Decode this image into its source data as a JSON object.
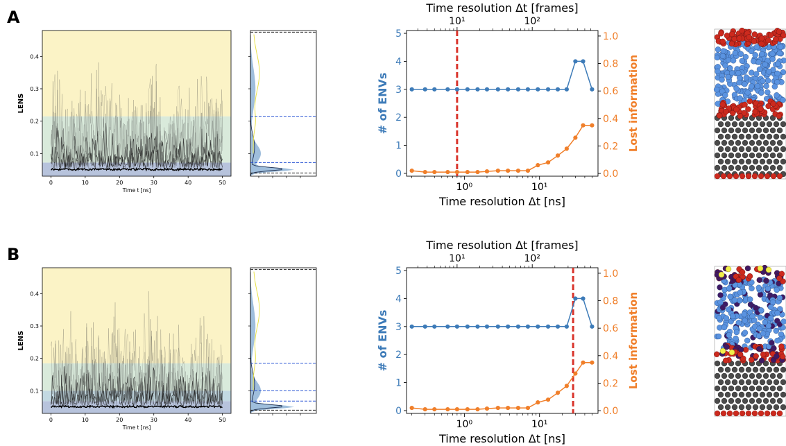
{
  "panels": [
    {
      "letter": "A",
      "lens_plot": {
        "ylabel": "LENS",
        "xlabel": "Time t [ns]",
        "x_ticks": [
          0,
          10,
          20,
          30,
          40,
          50
        ],
        "y_ticks": [
          "0.1",
          "0.2",
          "0.3",
          "0.4"
        ],
        "xlim": [
          -2.5,
          52.5
        ],
        "ylim": [
          0.03,
          0.48
        ],
        "bands": [
          {
            "from": 0.03,
            "to": 0.072,
            "color": "#b7c3dc"
          },
          {
            "from": 0.072,
            "to": 0.215,
            "color": "#d9eadb"
          },
          {
            "from": 0.215,
            "to": 0.48,
            "color": "#fbf3c6"
          }
        ],
        "signal": {
          "base": 0.055,
          "top": 0.37,
          "amplitude": 0.09
        }
      },
      "hist_thresholds": {
        "black": [
          0.04,
          0.475
        ],
        "blue": [
          0.072,
          0.215
        ]
      },
      "envs_plot": {
        "title_top": "Time resolution Δt [frames]",
        "xlabel": "Time resolution Δt [ns]",
        "ylabel_left": "# of ENVs",
        "ylabel_right": "Lost information",
        "top_ticks": [
          "10¹",
          "10²"
        ],
        "bottom_ticks": [
          "10⁰",
          "10¹"
        ],
        "left_ticks": [
          "0",
          "1",
          "2",
          "3",
          "4",
          "5"
        ],
        "right_ticks": [
          "0.0",
          "0.2",
          "0.4",
          "0.6",
          "0.8",
          "1.0"
        ],
        "vline_dt": 0.8
      },
      "structure": "A"
    },
    {
      "letter": "B",
      "lens_plot": {
        "ylabel": "LENS",
        "xlabel": "Time t [ns]",
        "x_ticks": [
          0,
          10,
          20,
          30,
          40,
          50
        ],
        "y_ticks": [
          "0.1",
          "0.2",
          "0.3",
          "0.4"
        ],
        "xlim": [
          -2.5,
          52.5
        ],
        "ylim": [
          0.03,
          0.48
        ],
        "bands": [
          {
            "from": 0.03,
            "to": 0.068,
            "color": "#b7c3dc"
          },
          {
            "from": 0.068,
            "to": 0.1,
            "color": "#c2d9e2"
          },
          {
            "from": 0.1,
            "to": 0.185,
            "color": "#d9eadb"
          },
          {
            "from": 0.185,
            "to": 0.48,
            "color": "#fbf3c6"
          }
        ],
        "signal": {
          "base": 0.055,
          "top": 0.36,
          "amplitude": 0.09
        }
      },
      "hist_thresholds": {
        "black": [
          0.04,
          0.475
        ],
        "blue": [
          0.068,
          0.1,
          0.185
        ]
      },
      "envs_plot": {
        "title_top": "Time resolution Δt [frames]",
        "xlabel": "Time resolution Δt [ns]",
        "ylabel_left": "# of ENVs",
        "ylabel_right": "Lost information",
        "top_ticks": [
          "10¹",
          "10²"
        ],
        "bottom_ticks": [
          "10⁰",
          "10¹"
        ],
        "left_ticks": [
          "0",
          "1",
          "2",
          "3",
          "4",
          "5"
        ],
        "right_ticks": [
          "0.0",
          "0.2",
          "0.4",
          "0.6",
          "0.8",
          "1.0"
        ],
        "vline_dt": 28
      },
      "structure": "B"
    }
  ],
  "chart_data": [
    {
      "type": "line",
      "series": [
        {
          "axis": "left",
          "color": "#3d7bb8",
          "x": [
            0.2,
            0.3,
            0.4,
            0.6,
            0.8,
            1.1,
            1.5,
            2.0,
            2.8,
            3.8,
            5.2,
            7.0,
            9.5,
            13,
            17.5,
            23,
            30,
            38,
            50
          ],
          "values": [
            3,
            3,
            3,
            3,
            3,
            3,
            3,
            3,
            3,
            3,
            3,
            3,
            3,
            3,
            3,
            3,
            4,
            4,
            3
          ]
        },
        {
          "axis": "right",
          "color": "#f07f2a",
          "x": [
            0.2,
            0.3,
            0.4,
            0.6,
            0.8,
            1.1,
            1.5,
            2.0,
            2.8,
            3.8,
            5.2,
            7.0,
            9.5,
            13,
            17.5,
            23,
            30,
            38,
            50
          ],
          "values": [
            0.02,
            0.01,
            0.01,
            0.01,
            0.01,
            0.01,
            0.01,
            0.015,
            0.02,
            0.02,
            0.02,
            0.02,
            0.06,
            0.08,
            0.13,
            0.18,
            0.26,
            0.35,
            0.35
          ]
        }
      ],
      "xlim": [
        0.17,
        60
      ],
      "ylim_left": [
        -0.1,
        5.1
      ],
      "ylim_right": [
        -0.02,
        1.04
      ]
    },
    {
      "type": "line",
      "series": [
        {
          "axis": "left",
          "color": "#3d7bb8",
          "x": [
            0.2,
            0.3,
            0.4,
            0.6,
            0.8,
            1.1,
            1.5,
            2.0,
            2.8,
            3.8,
            5.2,
            7.0,
            9.5,
            13,
            17.5,
            23,
            30,
            38,
            50
          ],
          "values": [
            3,
            3,
            3,
            3,
            3,
            3,
            3,
            3,
            3,
            3,
            3,
            3,
            3,
            3,
            3,
            3,
            4,
            4,
            3
          ]
        },
        {
          "axis": "right",
          "color": "#f07f2a",
          "x": [
            0.2,
            0.3,
            0.4,
            0.6,
            0.8,
            1.1,
            1.5,
            2.0,
            2.8,
            3.8,
            5.2,
            7.0,
            9.5,
            13,
            17.5,
            23,
            30,
            38,
            50
          ],
          "values": [
            0.02,
            0.01,
            0.01,
            0.01,
            0.01,
            0.01,
            0.01,
            0.015,
            0.02,
            0.02,
            0.02,
            0.02,
            0.06,
            0.08,
            0.13,
            0.18,
            0.27,
            0.35,
            0.35
          ]
        }
      ],
      "xlim": [
        0.17,
        60
      ],
      "ylim_left": [
        -0.1,
        5.1
      ],
      "ylim_right": [
        -0.02,
        1.04
      ]
    }
  ],
  "colors": {
    "blue": "#3d7bb8",
    "orange": "#f07f2a",
    "red": "#d9342b",
    "atom_red": "#cc2a1e",
    "atom_blue": "#5a93e0",
    "atom_gray": "#4a4a4a",
    "atom_purple": "#3f1a63",
    "atom_yellow": "#f2ef4a"
  }
}
